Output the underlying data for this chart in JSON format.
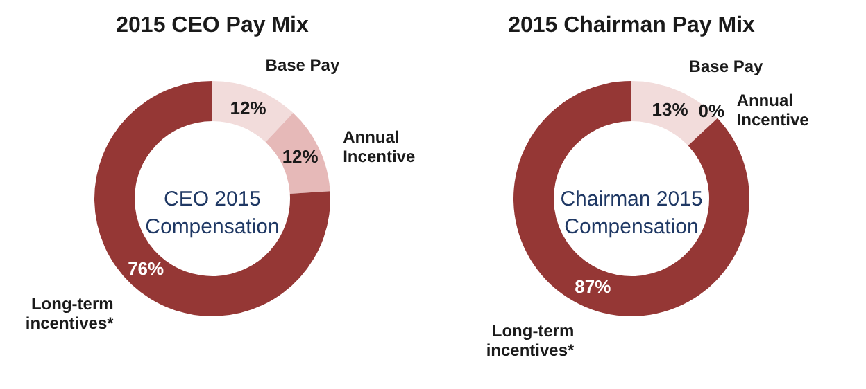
{
  "chart_data": [
    {
      "type": "donut",
      "title": "2015 CEO Pay Mix",
      "categories": [
        "Base Pay",
        "Annual Incentive",
        "Long-term incentives*"
      ],
      "values": [
        12,
        12,
        76
      ],
      "colors": [
        "#f2dcdb",
        "#e6b9b8",
        "#953735"
      ],
      "value_labels": [
        "12%",
        "12%",
        "76%"
      ],
      "annotations": [
        "CEO 2015 Compensation"
      ]
    },
    {
      "type": "donut",
      "title": "2015 Chairman Pay Mix",
      "categories": [
        "Base Pay",
        "Annual Incentive",
        "Long-term incentives*"
      ],
      "values": [
        13,
        0,
        87
      ],
      "colors": [
        "#f2dcdb",
        "#e6b9b8",
        "#953735"
      ],
      "value_labels": [
        "13%",
        "0%",
        "87%"
      ],
      "annotations": [
        "Chairman 2015 Compensation"
      ]
    }
  ]
}
